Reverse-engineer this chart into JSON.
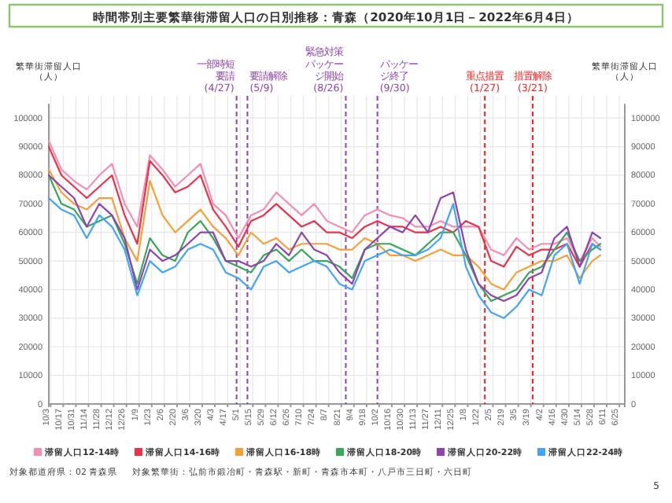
{
  "chart_data": {
    "type": "line",
    "title": "時間帯別主要繁華街滞留人口の日別推移：青森（2020年10月1日－2022年6月4日）",
    "ylabel": "繁華街滞留人口（人）",
    "y2label": "繁華街滞留人口（人）",
    "x": [
      "2020-10-01",
      "2020-10-15",
      "2020-10-29",
      "2020-11-12",
      "2020-11-26",
      "2020-12-10",
      "2020-12-24",
      "2021-01-07",
      "2021-01-21",
      "2021-02-04",
      "2021-02-18",
      "2021-03-04",
      "2021-03-18",
      "2021-04-01",
      "2021-04-15",
      "2021-04-29",
      "2021-05-13",
      "2021-05-27",
      "2021-06-10",
      "2021-06-24",
      "2021-07-08",
      "2021-07-22",
      "2021-08-05",
      "2021-08-19",
      "2021-09-02",
      "2021-09-16",
      "2021-09-30",
      "2021-10-14",
      "2021-10-28",
      "2021-11-11",
      "2021-11-25",
      "2021-12-09",
      "2021-12-23",
      "2022-01-06",
      "2022-01-20",
      "2022-02-03",
      "2022-02-17",
      "2022-03-03",
      "2022-03-17",
      "2022-03-31",
      "2022-04-14",
      "2022-04-28",
      "2022-05-12",
      "2022-05-26",
      "2022-06-04"
    ],
    "series": [
      {
        "name": "滞留人口12-14時",
        "color": "#f48fb1",
        "values": [
          92000,
          82000,
          78000,
          75000,
          80000,
          84000,
          70000,
          62000,
          87000,
          82000,
          76000,
          80000,
          84000,
          70000,
          66000,
          58000,
          66000,
          68000,
          74000,
          70000,
          66000,
          70000,
          64000,
          62000,
          60000,
          66000,
          68000,
          66000,
          65000,
          62000,
          62000,
          64000,
          62000,
          62000,
          62000,
          54000,
          52000,
          58000,
          54000,
          56000,
          56000,
          58000,
          50000,
          58000,
          55000
        ]
      },
      {
        "name": "滞留人口14-16時",
        "color": "#e8334a",
        "values": [
          90000,
          80000,
          76000,
          72000,
          76000,
          80000,
          66000,
          56000,
          85000,
          80000,
          74000,
          76000,
          80000,
          68000,
          62000,
          55000,
          64000,
          66000,
          70000,
          66000,
          62000,
          64000,
          60000,
          60000,
          58000,
          62000,
          64000,
          62000,
          62000,
          60000,
          60000,
          62000,
          60000,
          64000,
          62000,
          50000,
          48000,
          55000,
          52000,
          54000,
          54000,
          56000,
          48000,
          56000,
          54000
        ]
      },
      {
        "name": "滞留人口16-18時",
        "color": "#f5a03a",
        "values": [
          82000,
          74000,
          70000,
          68000,
          72000,
          72000,
          58000,
          50000,
          78000,
          66000,
          60000,
          64000,
          68000,
          62000,
          58000,
          52000,
          60000,
          56000,
          58000,
          54000,
          56000,
          56000,
          56000,
          54000,
          54000,
          58000,
          56000,
          52000,
          52000,
          50000,
          52000,
          54000,
          52000,
          52000,
          48000,
          42000,
          40000,
          46000,
          48000,
          50000,
          50000,
          52000,
          44000,
          50000,
          52000
        ]
      },
      {
        "name": "滞留人口18-20時",
        "color": "#3aa55c",
        "values": [
          80000,
          70000,
          68000,
          62000,
          64000,
          66000,
          56000,
          42000,
          58000,
          52000,
          50000,
          60000,
          64000,
          58000,
          50000,
          48000,
          46000,
          52000,
          54000,
          50000,
          54000,
          50000,
          50000,
          48000,
          44000,
          54000,
          56000,
          56000,
          54000,
          52000,
          56000,
          60000,
          60000,
          52000,
          42000,
          36000,
          38000,
          40000,
          46000,
          48000,
          54000,
          60000,
          50000,
          54000,
          56000
        ]
      },
      {
        "name": "滞留人口20-22時",
        "color": "#8e44ad",
        "values": [
          80000,
          76000,
          72000,
          62000,
          70000,
          66000,
          58000,
          40000,
          54000,
          50000,
          52000,
          56000,
          60000,
          60000,
          50000,
          50000,
          48000,
          50000,
          56000,
          52000,
          60000,
          54000,
          52000,
          46000,
          42000,
          54000,
          58000,
          62000,
          60000,
          66000,
          60000,
          72000,
          74000,
          54000,
          42000,
          38000,
          36000,
          38000,
          44000,
          46000,
          58000,
          62000,
          48000,
          60000,
          58000
        ]
      },
      {
        "name": "滞留人口22-24時",
        "color": "#42a5f5",
        "values": [
          72000,
          68000,
          66000,
          58000,
          66000,
          62000,
          54000,
          38000,
          50000,
          46000,
          48000,
          54000,
          56000,
          54000,
          46000,
          44000,
          40000,
          48000,
          50000,
          46000,
          48000,
          50000,
          48000,
          42000,
          40000,
          50000,
          52000,
          54000,
          52000,
          52000,
          54000,
          58000,
          70000,
          48000,
          38000,
          32000,
          30000,
          34000,
          40000,
          38000,
          52000,
          56000,
          42000,
          56000,
          54000
        ]
      }
    ],
    "xlim": [
      "2020-10-01",
      "2022-07-01"
    ],
    "xticks": [
      {
        "value": "2020-10-03",
        "label": "10/3"
      },
      {
        "value": "2020-10-17",
        "label": "10/17"
      },
      {
        "value": "2020-10-31",
        "label": "10/31"
      },
      {
        "value": "2020-11-14",
        "label": "11/14"
      },
      {
        "value": "2020-11-28",
        "label": "11/28"
      },
      {
        "value": "2020-12-12",
        "label": "12/12"
      },
      {
        "value": "2020-12-26",
        "label": "12/26"
      },
      {
        "value": "2021-01-09",
        "label": "1/9"
      },
      {
        "value": "2021-01-23",
        "label": "1/23"
      },
      {
        "value": "2021-02-06",
        "label": "2/6"
      },
      {
        "value": "2021-02-20",
        "label": "2/20"
      },
      {
        "value": "2021-03-06",
        "label": "3/6"
      },
      {
        "value": "2021-03-20",
        "label": "3/20"
      },
      {
        "value": "2021-04-03",
        "label": "4/3"
      },
      {
        "value": "2021-04-17",
        "label": "4/17"
      },
      {
        "value": "2021-05-01",
        "label": "5/1"
      },
      {
        "value": "2021-05-15",
        "label": "5/15"
      },
      {
        "value": "2021-05-29",
        "label": "5/29"
      },
      {
        "value": "2021-06-12",
        "label": "6/12"
      },
      {
        "value": "2021-06-26",
        "label": "6/26"
      },
      {
        "value": "2021-07-10",
        "label": "7/10"
      },
      {
        "value": "2021-07-24",
        "label": "7/24"
      },
      {
        "value": "2021-08-07",
        "label": "8/7"
      },
      {
        "value": "2021-08-21",
        "label": "8/21"
      },
      {
        "value": "2021-09-04",
        "label": "9/4"
      },
      {
        "value": "2021-09-18",
        "label": "9/18"
      },
      {
        "value": "2021-10-02",
        "label": "10/2"
      },
      {
        "value": "2021-10-16",
        "label": "10/16"
      },
      {
        "value": "2021-10-30",
        "label": "10/30"
      },
      {
        "value": "2021-11-13",
        "label": "11/13"
      },
      {
        "value": "2021-11-27",
        "label": "11/27"
      },
      {
        "value": "2021-12-11",
        "label": "12/11"
      },
      {
        "value": "2021-12-25",
        "label": "12/25"
      },
      {
        "value": "2022-01-08",
        "label": "1/8"
      },
      {
        "value": "2022-01-22",
        "label": "1/22"
      },
      {
        "value": "2022-02-05",
        "label": "2/5"
      },
      {
        "value": "2022-02-19",
        "label": "2/19"
      },
      {
        "value": "2022-03-05",
        "label": "3/5"
      },
      {
        "value": "2022-03-19",
        "label": "3/19"
      },
      {
        "value": "2022-04-02",
        "label": "4/2"
      },
      {
        "value": "2022-04-16",
        "label": "4/16"
      },
      {
        "value": "2022-04-30",
        "label": "4/30"
      },
      {
        "value": "2022-05-14",
        "label": "5/14"
      },
      {
        "value": "2022-05-28",
        "label": "5/28"
      },
      {
        "value": "2022-06-11",
        "label": "6/11"
      },
      {
        "value": "2022-06-25",
        "label": "6/25"
      }
    ],
    "ylim": [
      0,
      105000
    ],
    "yticks": [
      0,
      10000,
      20000,
      30000,
      40000,
      50000,
      60000,
      70000,
      80000,
      90000,
      100000
    ],
    "y2lim": [
      0,
      105000
    ],
    "y2ticks": [
      0,
      10000,
      20000,
      30000,
      40000,
      50000,
      60000,
      70000,
      80000,
      90000,
      100000
    ],
    "grid": true,
    "legend": "bottom",
    "marker": "none",
    "line_style": "solid",
    "ref_lines": [
      {
        "axis": "x",
        "value": "2021-04-27",
        "label": "一部時短要請(4/27)",
        "color": "#8e44ad",
        "line_style": "dashed"
      },
      {
        "axis": "x",
        "value": "2021-05-09",
        "label": "要請解除(5/9)",
        "color": "#8e44ad",
        "line_style": "dashed"
      },
      {
        "axis": "x",
        "value": "2021-08-26",
        "label": "緊急対策パッケージ開始(8/26)",
        "color": "#8e44ad",
        "line_style": "dashed"
      },
      {
        "axis": "x",
        "value": "2021-09-30",
        "label": "パッケージ終了(9/30)",
        "color": "#8e44ad",
        "line_style": "dashed"
      },
      {
        "axis": "x",
        "value": "2022-01-27",
        "label": "重点措置(1/27)",
        "color": "#ff2020",
        "line_style": "dashed"
      },
      {
        "axis": "x",
        "value": "2022-03-21",
        "label": "措置解除(3/21)",
        "color": "#ff2020",
        "line_style": "dashed"
      }
    ],
    "annotations": [
      "対象都道府県：02 青森県",
      "対象繁華街：弘前市鍛冶町・青森駅・新町・青森市本町・八戸市三日町・六日町",
      "5"
    ]
  }
}
